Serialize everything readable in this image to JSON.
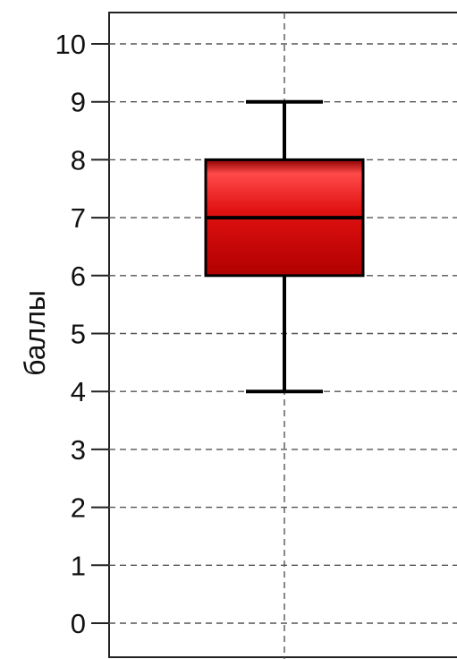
{
  "chart_data": {
    "type": "box",
    "ylabel": "баллы",
    "ylim": [
      0,
      10
    ],
    "y_ticks": [
      "0",
      "1",
      "2",
      "3",
      "4",
      "5",
      "6",
      "7",
      "8",
      "9",
      "10"
    ],
    "grid": true,
    "box": {
      "whisker_low": 4,
      "q1": 6,
      "median": 7,
      "q3": 8,
      "whisker_high": 9
    },
    "colors": {
      "box_fill": "#e01010",
      "box_highlight": "#ff4a4a",
      "box_shadow": "#8a0000",
      "line": "#000000",
      "grid": "#555555"
    }
  }
}
